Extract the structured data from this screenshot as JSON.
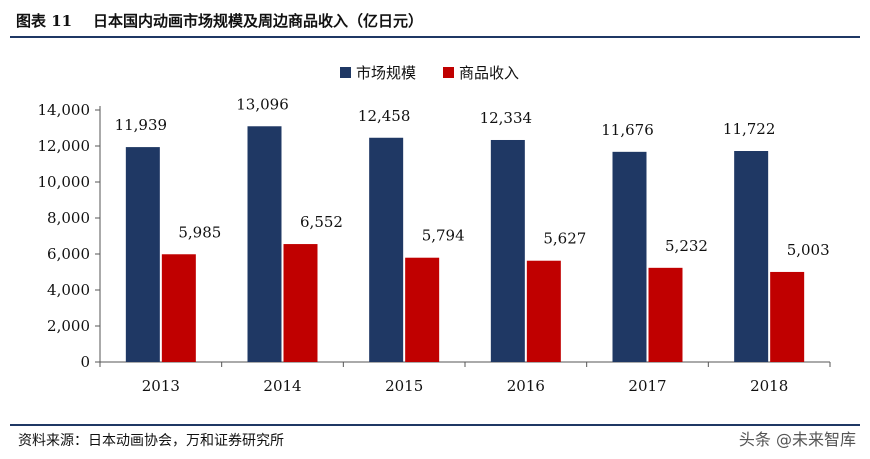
{
  "header": {
    "title": "图表 11    日本国内动画市场规模及周边商品收入（亿日元）"
  },
  "footer": {
    "source": "资料来源：日本动画协会，万和证券研究所",
    "watermark": "头条 @未来智库"
  },
  "colors": {
    "series1": "#1f3864",
    "series2": "#c00000",
    "rule": "#1f3864"
  },
  "chart_data": {
    "type": "bar",
    "title": "",
    "xlabel": "",
    "ylabel": "",
    "categories": [
      "2013",
      "2014",
      "2015",
      "2016",
      "2017",
      "2018"
    ],
    "series": [
      {
        "name": "市场规模",
        "values": [
          11939,
          13096,
          12458,
          12334,
          11676,
          11722
        ],
        "labels": [
          "11,939",
          "13,096",
          "12,458",
          "12,334",
          "11,676",
          "11,722"
        ]
      },
      {
        "name": "商品收入",
        "values": [
          5985,
          6552,
          5794,
          5627,
          5232,
          5003
        ],
        "labels": [
          "5,985",
          "6,552",
          "5,794",
          "5,627",
          "5,232",
          "5,003"
        ]
      }
    ],
    "ylim": [
      0,
      14000
    ],
    "yticks": [
      "0",
      "2,000",
      "4,000",
      "6,000",
      "8,000",
      "10,000",
      "12,000",
      "14,000"
    ],
    "legend": "top-center",
    "grid": false
  }
}
